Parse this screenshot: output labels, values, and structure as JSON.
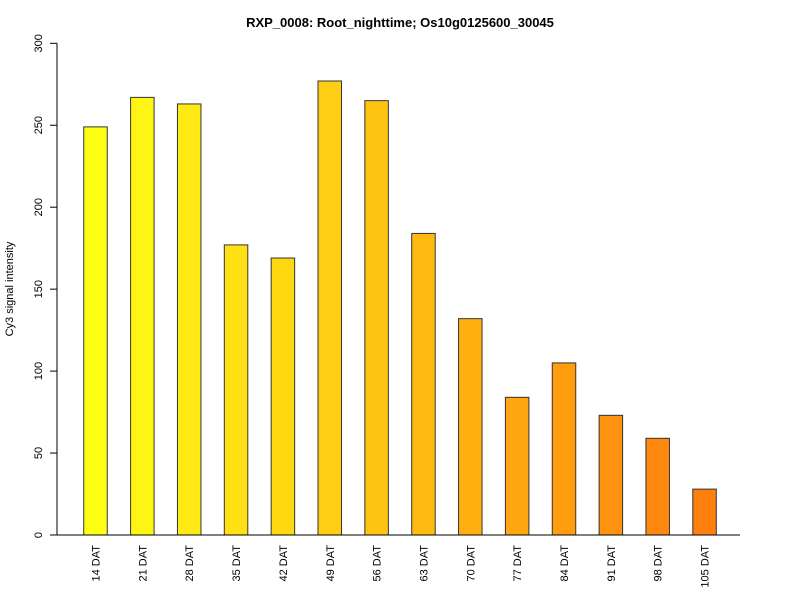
{
  "chart_data": {
    "type": "bar",
    "title": "RXP_0008: Root_nighttime; Os10g0125600_30045",
    "xlabel": "",
    "ylabel": "Cy3 signal intensity",
    "ylim": [
      0,
      300
    ],
    "yticks": [
      0,
      50,
      100,
      150,
      200,
      250,
      300
    ],
    "grid": false,
    "categories": [
      "14 DAT",
      "21 DAT",
      "28 DAT",
      "35 DAT",
      "42 DAT",
      "49 DAT",
      "56 DAT",
      "63 DAT",
      "70 DAT",
      "77 DAT",
      "84 DAT",
      "91 DAT",
      "98 DAT",
      "105 DAT"
    ],
    "values": [
      249,
      267,
      263,
      177,
      169,
      277,
      265,
      184,
      132,
      84,
      105,
      73,
      59,
      28
    ],
    "color_start": "#FFFF14",
    "color_end": "#FF7F0E"
  }
}
